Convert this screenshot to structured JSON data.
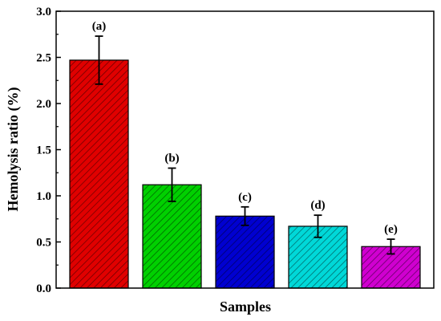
{
  "chart_data": {
    "type": "bar",
    "xlabel": "Samples",
    "ylabel": "Hemolysis ratio (%)",
    "ylim": [
      0,
      3.0
    ],
    "yticks": [
      "0.0",
      "0.5",
      "1.0",
      "1.5",
      "2.0",
      "2.5",
      "3.0"
    ],
    "ytick_values": [
      0,
      0.5,
      1.0,
      1.5,
      2.0,
      2.5,
      3.0
    ],
    "grid": false,
    "categories": [
      "(a)",
      "(b)",
      "(c)",
      "(d)",
      "(e)"
    ],
    "values": [
      2.47,
      1.12,
      0.78,
      0.67,
      0.45
    ],
    "errors": [
      0.26,
      0.18,
      0.1,
      0.12,
      0.08
    ],
    "colors": [
      "#e00000",
      "#00d000",
      "#0000d0",
      "#00d8d8",
      "#d000d0"
    ],
    "pattern": "diagonal-hatch"
  }
}
